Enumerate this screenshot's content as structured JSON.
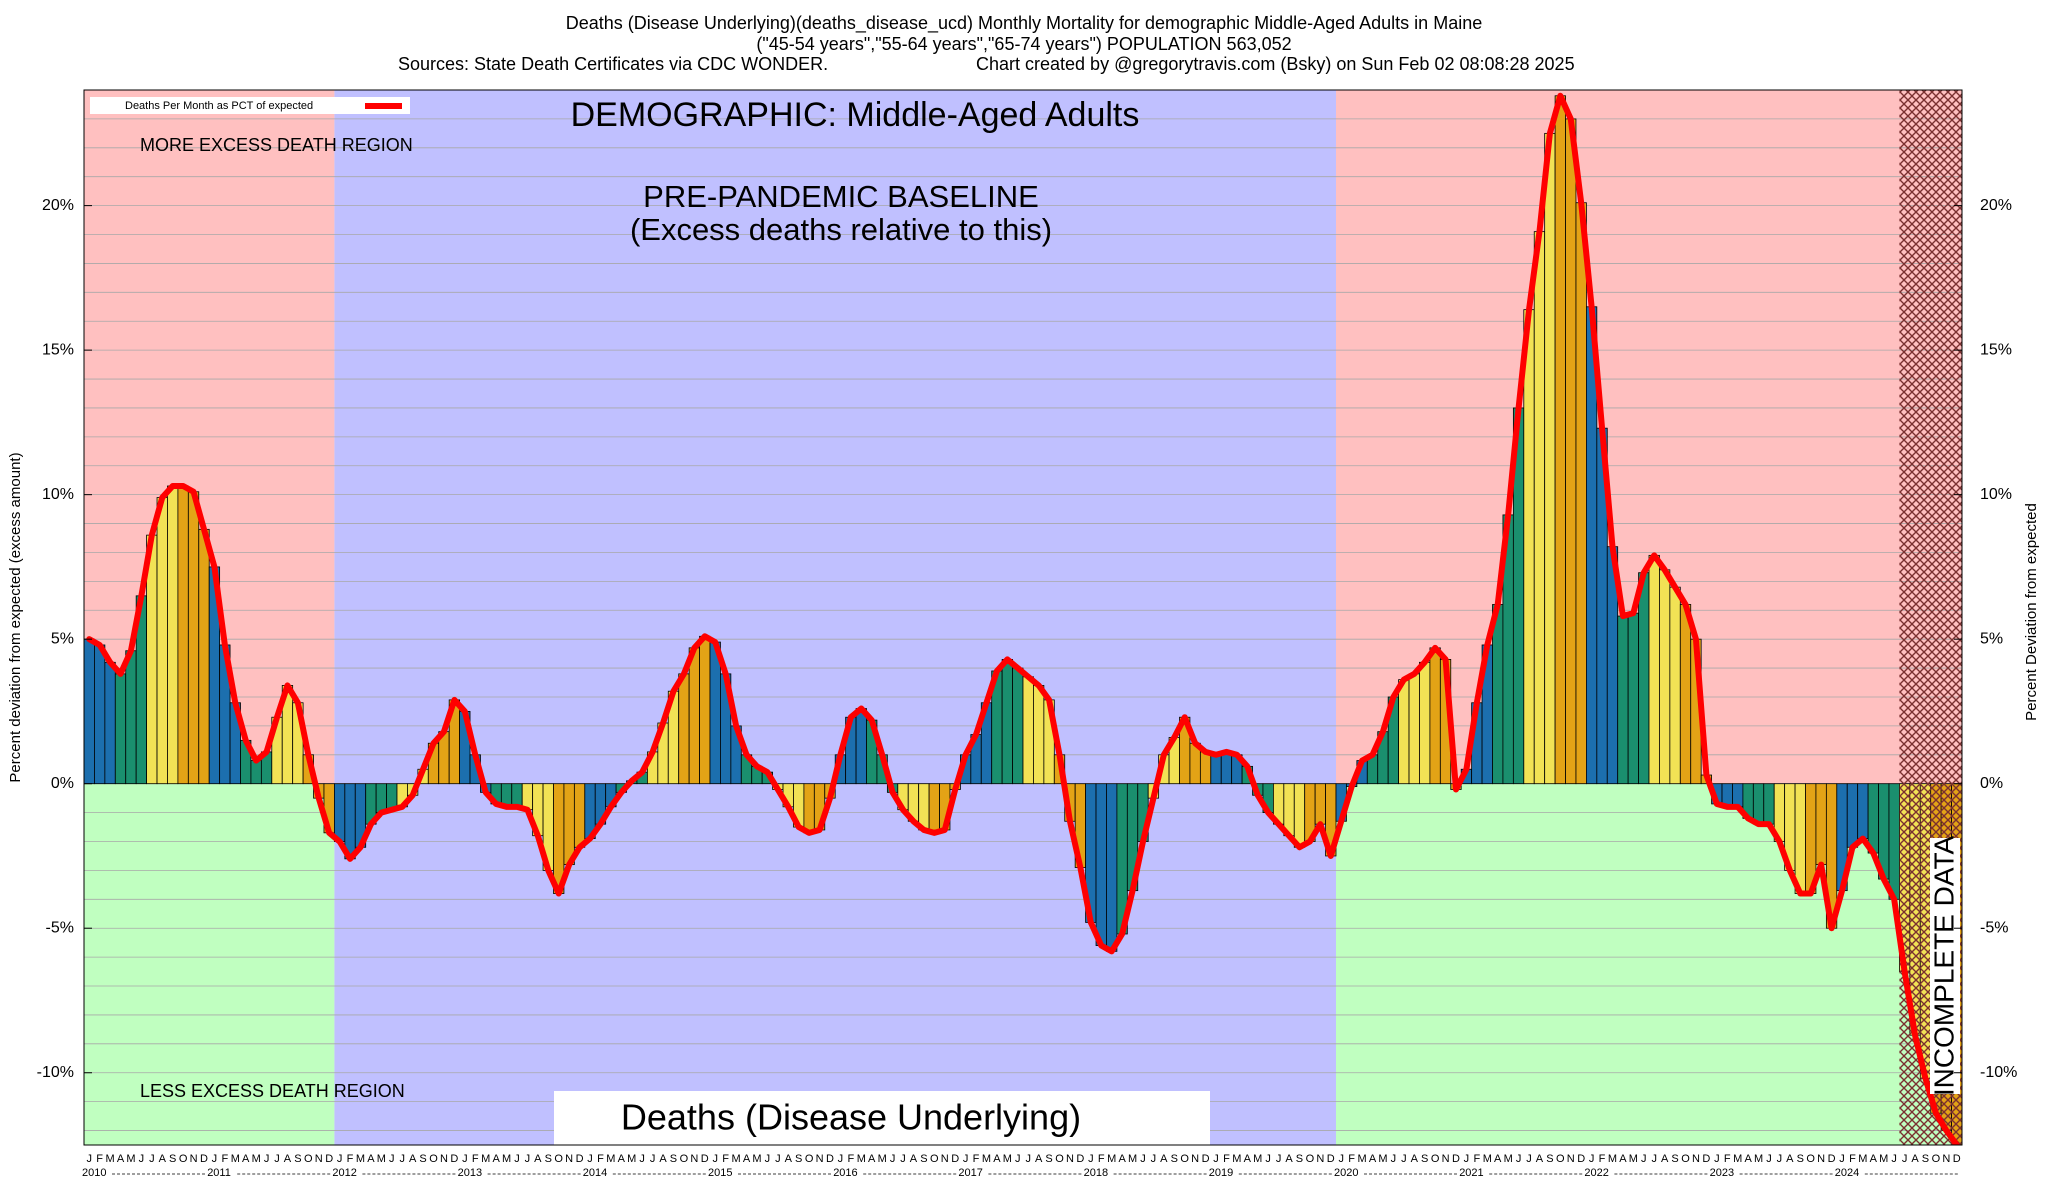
{
  "chart_data": {
    "type": "bar",
    "title": "Deaths (Disease Underlying)(deaths_disease_ucd) Monthly Mortality for demographic Middle-Aged Adults in Maine",
    "subtitle": "(\"45-54 years\",\"55-64 years\",\"65-74 years\") POPULATION 563,052",
    "source": "Sources: State Death Certificates via CDC WONDER.",
    "credit": "Chart created by @gregorytravis.com (Bsky) on Sun Feb 02 08:08:28 2025",
    "ylabel": "Percent deviation from expected (excess amount)",
    "y2label": "Percent Deviation from expected",
    "annotations": {
      "demographic": "DEMOGRAPHIC: Middle-Aged Adults",
      "more": "MORE EXCESS DEATH REGION",
      "less": "LESS EXCESS DEATH REGION",
      "baseline1": "PRE-PANDEMIC BASELINE",
      "baseline2": "(Excess deaths relative to this)",
      "incomplete": "INCOMPLETE DATA",
      "footer": "Deaths (Disease Underlying)"
    },
    "categories": [
      "J",
      "F",
      "M",
      "A",
      "M",
      "J",
      "J",
      "A",
      "S",
      "O",
      "N",
      "D",
      "J",
      "F",
      "M",
      "A",
      "M",
      "J",
      "J",
      "A",
      "S",
      "O",
      "N",
      "D",
      "J",
      "F",
      "M",
      "A",
      "M",
      "J",
      "J",
      "A",
      "S",
      "O",
      "N",
      "D",
      "J",
      "F",
      "M",
      "A",
      "M",
      "J",
      "J",
      "A",
      "S",
      "O",
      "N",
      "D",
      "J",
      "F",
      "M",
      "A",
      "M",
      "J",
      "J",
      "A",
      "S",
      "O",
      "N",
      "D",
      "J",
      "F",
      "M",
      "A",
      "M",
      "J",
      "J",
      "A",
      "S",
      "O",
      "N",
      "D",
      "J",
      "F",
      "M",
      "A",
      "M",
      "J",
      "J",
      "A",
      "S",
      "O",
      "N",
      "D",
      "J",
      "F",
      "M",
      "A",
      "M",
      "J",
      "J",
      "A",
      "S",
      "O",
      "N",
      "D",
      "J",
      "F",
      "M",
      "A",
      "M",
      "J",
      "J",
      "A",
      "S",
      "O",
      "N",
      "D",
      "J",
      "F",
      "M",
      "A",
      "M",
      "J",
      "J",
      "A",
      "S",
      "O",
      "N",
      "D",
      "J",
      "F",
      "M",
      "A",
      "M",
      "J",
      "J",
      "A",
      "S",
      "O",
      "N",
      "D",
      "J",
      "F",
      "M",
      "A",
      "M",
      "J",
      "J",
      "A",
      "S",
      "O",
      "N",
      "D",
      "J",
      "F",
      "M",
      "A",
      "M",
      "J",
      "J",
      "A",
      "S",
      "O",
      "N",
      "D",
      "J",
      "F",
      "M",
      "A",
      "M",
      "J",
      "J",
      "A",
      "S",
      "O",
      "N",
      "D",
      "J",
      "F",
      "M",
      "A",
      "M",
      "J",
      "J",
      "A",
      "S",
      "O",
      "N",
      "D"
    ],
    "years": [
      "2010",
      "2011",
      "2012",
      "2013",
      "2014",
      "2015",
      "2016",
      "2017",
      "2018",
      "2019",
      "2020",
      "2021",
      "2022",
      "2023",
      "2024"
    ],
    "series": [
      {
        "name": "Deaths Per Month as PCT of expected",
        "color": "#ff0000",
        "values": [
          5.0,
          4.8,
          4.2,
          3.8,
          4.6,
          6.5,
          8.6,
          9.9,
          10.3,
          10.3,
          10.1,
          8.8,
          7.5,
          4.8,
          2.8,
          1.5,
          0.8,
          1.1,
          2.3,
          3.4,
          2.8,
          1.0,
          -0.5,
          -1.7,
          -2.0,
          -2.6,
          -2.2,
          -1.4,
          -1.0,
          -0.9,
          -0.8,
          -0.4,
          0.5,
          1.4,
          1.8,
          2.9,
          2.5,
          1.0,
          -0.3,
          -0.7,
          -0.8,
          -0.8,
          -0.9,
          -1.8,
          -3.0,
          -3.8,
          -2.8,
          -2.2,
          -1.9,
          -1.4,
          -0.8,
          -0.3,
          0.1,
          0.4,
          1.1,
          2.1,
          3.2,
          3.8,
          4.7,
          5.1,
          4.9,
          3.8,
          2.0,
          1.0,
          0.6,
          0.4,
          -0.2,
          -0.8,
          -1.5,
          -1.7,
          -1.6,
          -0.5,
          1.0,
          2.3,
          2.6,
          2.2,
          1.0,
          -0.3,
          -0.9,
          -1.3,
          -1.6,
          -1.7,
          -1.6,
          -0.2,
          1.0,
          1.7,
          2.8,
          3.9,
          4.3,
          4.0,
          3.7,
          3.4,
          2.9,
          1.0,
          -1.3,
          -2.9,
          -4.8,
          -5.6,
          -5.8,
          -5.2,
          -3.7,
          -2.0,
          -0.5,
          1.0,
          1.6,
          2.3,
          1.4,
          1.1,
          1.0,
          1.1,
          1.0,
          0.6,
          -0.4,
          -1.0,
          -1.4,
          -1.8,
          -2.2,
          -2.0,
          -1.4,
          -2.5,
          -1.3,
          -0.1,
          0.8,
          1.0,
          1.8,
          3.0,
          3.6,
          3.8,
          4.2,
          4.7,
          4.3,
          -0.2,
          0.5,
          2.8,
          4.8,
          6.2,
          9.3,
          13.0,
          16.4,
          19.1,
          22.5,
          23.8,
          23.0,
          20.1,
          16.5,
          12.3,
          8.2,
          5.8,
          5.9,
          7.3,
          7.9,
          7.4,
          6.8,
          6.2,
          5.0,
          0.3,
          -0.7,
          -0.8,
          -0.8,
          -1.2,
          -1.4,
          -1.4,
          -2.0,
          -3.0,
          -3.8,
          -3.8,
          -2.8,
          -5.0,
          -3.7,
          -2.2,
          -1.9,
          -2.4,
          -3.3,
          -4.0,
          -6.5,
          -8.7,
          -10.2,
          -11.4,
          -12.0,
          -12.5
        ]
      }
    ],
    "quarter_colors": [
      "#1c6fae",
      "#1a8f6e",
      "#f2e255",
      "#e3a316"
    ],
    "region_colors": {
      "above": "#ffc0c0",
      "below": "#c0ffc0",
      "baseline": "#c0c0ff",
      "hatch": "#7a3030"
    },
    "baseline_months": [
      24,
      120
    ],
    "incomplete_from": 174,
    "ylim": [
      -12.5,
      24
    ],
    "yticks": [
      {
        "value": -10,
        "label": "-10%"
      },
      {
        "value": -5,
        "label": "-5%"
      },
      {
        "value": 0,
        "label": "0%"
      },
      {
        "value": 5,
        "label": "5%"
      },
      {
        "value": 10,
        "label": "10%"
      },
      {
        "value": 15,
        "label": "15%"
      },
      {
        "value": 20,
        "label": "20%"
      }
    ],
    "yminor": [
      -12,
      -11,
      -10,
      -9,
      -8,
      -7,
      -6,
      -5,
      -4,
      -3,
      -2,
      -1,
      0,
      1,
      2,
      3,
      4,
      5,
      6,
      7,
      8,
      9,
      10,
      11,
      12,
      13,
      14,
      15,
      16,
      17,
      18,
      19,
      20,
      21,
      22,
      23
    ],
    "grid": true
  }
}
